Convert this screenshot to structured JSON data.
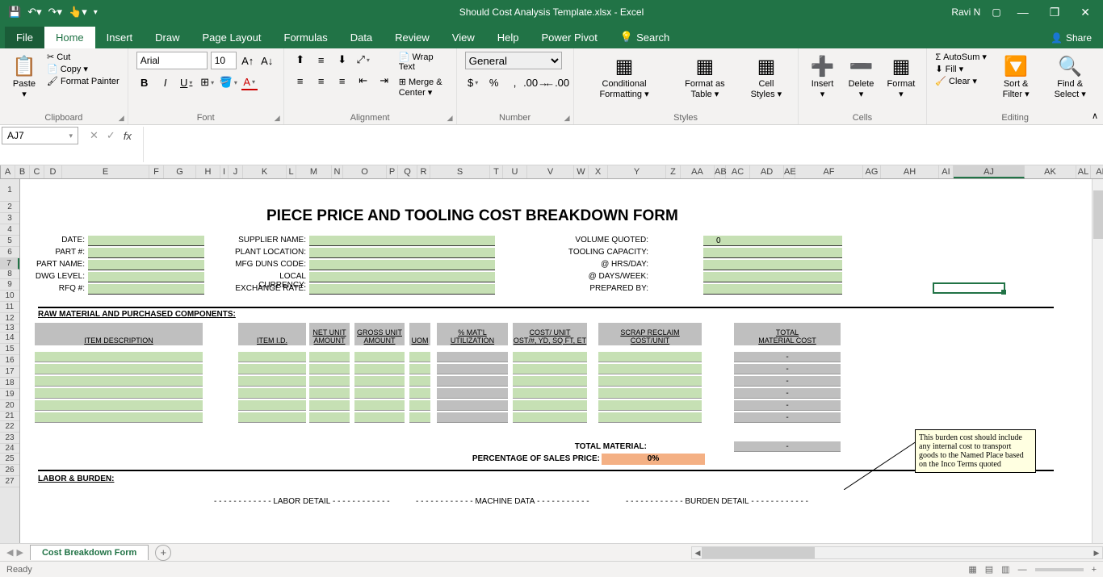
{
  "app": {
    "title": "Should Cost Analysis Template.xlsx  -  Excel",
    "user": "Ravi N"
  },
  "tabs": {
    "file": "File",
    "home": "Home",
    "insert": "Insert",
    "draw": "Draw",
    "page_layout": "Page Layout",
    "formulas": "Formulas",
    "data": "Data",
    "review": "Review",
    "view": "View",
    "help": "Help",
    "power_pivot": "Power Pivot",
    "search": "Search",
    "share": "Share"
  },
  "ribbon": {
    "clipboard": {
      "label": "Clipboard",
      "paste": "Paste",
      "cut": "Cut",
      "copy": "Copy",
      "format_painter": "Format Painter"
    },
    "font": {
      "label": "Font",
      "name": "Arial",
      "size": "10"
    },
    "alignment": {
      "label": "Alignment",
      "wrap": "Wrap Text",
      "merge": "Merge & Center"
    },
    "number": {
      "label": "Number",
      "format": "General"
    },
    "styles": {
      "label": "Styles",
      "cf": "Conditional Formatting",
      "fat": "Format as Table",
      "cs": "Cell Styles"
    },
    "cells": {
      "label": "Cells",
      "insert": "Insert",
      "delete": "Delete",
      "format": "Format"
    },
    "editing": {
      "label": "Editing",
      "autosum": "AutoSum",
      "fill": "Fill",
      "clear": "Clear",
      "sort": "Sort & Filter",
      "find": "Find & Select"
    }
  },
  "formula_bar": {
    "cell_ref": "AJ7"
  },
  "columns": [
    {
      "l": "A",
      "w": 18
    },
    {
      "l": "B",
      "w": 18
    },
    {
      "l": "C",
      "w": 18
    },
    {
      "l": "D",
      "w": 22
    },
    {
      "l": "E",
      "w": 108
    },
    {
      "l": "F",
      "w": 18
    },
    {
      "l": "G",
      "w": 40
    },
    {
      "l": "H",
      "w": 30
    },
    {
      "l": "I",
      "w": 10
    },
    {
      "l": "J",
      "w": 18
    },
    {
      "l": "K",
      "w": 54
    },
    {
      "l": "L",
      "w": 12
    },
    {
      "l": "M",
      "w": 44
    },
    {
      "l": "N",
      "w": 14
    },
    {
      "l": "O",
      "w": 54
    },
    {
      "l": "P",
      "w": 14
    },
    {
      "l": "Q",
      "w": 24
    },
    {
      "l": "R",
      "w": 16
    },
    {
      "l": "S",
      "w": 74
    },
    {
      "l": "T",
      "w": 16
    },
    {
      "l": "U",
      "w": 30
    },
    {
      "l": "V",
      "w": 58
    },
    {
      "l": "W",
      "w": 18
    },
    {
      "l": "X",
      "w": 24
    },
    {
      "l": "Y",
      "w": 72
    },
    {
      "l": "Z",
      "w": 18
    },
    {
      "l": "AA",
      "w": 42
    },
    {
      "l": "AB",
      "w": 14
    },
    {
      "l": "AC",
      "w": 30
    },
    {
      "l": "AD",
      "w": 42
    },
    {
      "l": "AE",
      "w": 14
    },
    {
      "l": "AF",
      "w": 84
    },
    {
      "l": "AG",
      "w": 22
    },
    {
      "l": "AH",
      "w": 72
    },
    {
      "l": "AI",
      "w": 18
    },
    {
      "l": "AJ",
      "w": 88
    },
    {
      "l": "AK",
      "w": 64
    },
    {
      "l": "AL",
      "w": 18
    },
    {
      "l": "AM",
      "w": 30
    }
  ],
  "rows": [
    28,
    14,
    14,
    14,
    14,
    14,
    14,
    12,
    14,
    14,
    14,
    14,
    10,
    14,
    14,
    14,
    14,
    14,
    14,
    14,
    12,
    14,
    14,
    12,
    14,
    14,
    14
  ],
  "selected_row": 7,
  "selected_col": "AJ",
  "form": {
    "title": "PIECE PRICE AND TOOLING COST BREAKDOWN FORM",
    "left_labels": [
      "DATE:",
      "PART #:",
      "PART NAME:",
      "DWG LEVEL:",
      "RFQ #:"
    ],
    "mid_labels": [
      "SUPPLIER NAME:",
      "PLANT LOCATION:",
      "MFG DUNS CODE:",
      "LOCAL CURRENCY:",
      "EXCHANGE RATE:"
    ],
    "right_labels": [
      "VOLUME QUOTED:",
      "TOOLING CAPACITY:",
      "@ HRS/DAY:",
      "@ DAYS/WEEK:",
      "PREPARED BY:"
    ],
    "volume_value": "0",
    "section1": "RAW MATERIAL AND PURCHASED COMPONENTS:",
    "section2": "LABOR & BURDEN:",
    "col_headers": {
      "item_desc": "ITEM DESCRIPTION",
      "item_id": "ITEM I.D.",
      "net_unit": "NET UNIT AMOUNT",
      "gross_unit": "GROSS UNIT AMOUNT",
      "uom": "UOM",
      "matl_util": "% MAT'L UTILIZATION",
      "cost_unit": "COST/ UNIT OST/#, YD, SQ FT, ET",
      "scrap": "SCRAP RECLAIM COST/UNIT",
      "total_mat": "TOTAL MATERIAL COST"
    },
    "dash_value": "-",
    "total_material": "TOTAL MATERIAL:",
    "pct_sales": "PERCENTAGE OF SALES PRICE:",
    "pct_value": "0%",
    "labor_detail": "LABOR DETAIL",
    "machine_data": "MACHINE DATA",
    "burden_detail": "BURDEN DETAIL",
    "comment": "This burden cost should include any internal cost to transport goods to the Named Place based on the Inco Terms quoted"
  },
  "colors": {
    "excel_green": "#217346",
    "light_green": "#c6e0b4",
    "gray": "#bfbfbf",
    "orange": "#f4b084",
    "comment_bg": "#ffffe1"
  },
  "sheet_tab": "Cost Breakdown Form",
  "status": "Ready"
}
